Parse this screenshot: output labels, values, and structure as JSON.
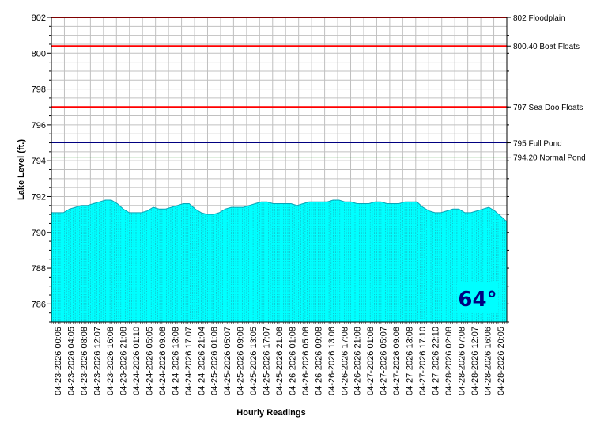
{
  "chart_data": {
    "type": "area",
    "title": "",
    "xlabel": "Hourly Readings",
    "ylabel": "Lake Level (ft.)",
    "ylim": [
      785,
      802
    ],
    "yticks": [
      786,
      788,
      790,
      792,
      794,
      796,
      798,
      800,
      802
    ],
    "grid": true,
    "x_tick_labels": [
      "04-23-2026 00:05",
      "04-23-2026 04:05",
      "04-23-2026 08:08",
      "04-23-2026 12:07",
      "04-23-2026 16:08",
      "04-23-2026 21:08",
      "04-24-2026 01:10",
      "04-24-2026 05:05",
      "04-24-2026 09:08",
      "04-24-2026 13:08",
      "04-24-2026 17:07",
      "04-24-2026 21:04",
      "04-25-2026 01:08",
      "04-25-2026 05:07",
      "04-25-2026 09:08",
      "04-25-2026 13:05",
      "04-25-2026 17:07",
      "04-25-2026 21:08",
      "04-26-2026 01:08",
      "04-26-2026 05:08",
      "04-26-2026 09:08",
      "04-26-2026 13:06",
      "04-26-2026 17:08",
      "04-26-2026 21:08",
      "04-27-2026 01:08",
      "04-27-2026 05:07",
      "04-27-2026 09:08",
      "04-27-2026 13:08",
      "04-27-2026 17:10",
      "04-27-2026 22:10",
      "04-28-2026 02:08",
      "04-28-2026 07:08",
      "04-28-2026 12:07",
      "04-28-2026 16:06",
      "04-28-2026 20:05"
    ],
    "series": [
      {
        "type": "area",
        "color": "#00ffff",
        "values": [
          791.1,
          791.1,
          791.1,
          791.3,
          791.4,
          791.5,
          791.5,
          791.6,
          791.7,
          791.8,
          791.8,
          791.6,
          791.3,
          791.1,
          791.1,
          791.1,
          791.2,
          791.4,
          791.3,
          791.3,
          791.4,
          791.5,
          791.6,
          791.6,
          791.3,
          791.1,
          791.0,
          791.0,
          791.1,
          791.3,
          791.4,
          791.4,
          791.4,
          791.5,
          791.6,
          791.7,
          791.7,
          791.6,
          791.6,
          791.6,
          791.6,
          791.5,
          791.6,
          791.7,
          791.7,
          791.7,
          791.7,
          791.8,
          791.8,
          791.7,
          791.7,
          791.6,
          791.6,
          791.6,
          791.7,
          791.7,
          791.6,
          791.6,
          791.6,
          791.7,
          791.7,
          791.7,
          791.4,
          791.2,
          791.1,
          791.1,
          791.2,
          791.3,
          791.3,
          791.1,
          791.1,
          791.2,
          791.3,
          791.4,
          791.2,
          790.9,
          790.6
        ]
      }
    ],
    "reference_lines": [
      {
        "value": 802,
        "label": "802 Floodplain",
        "color": "#ff0000"
      },
      {
        "value": 800.4,
        "label": "800.40 Boat Floats",
        "color": "#ff0000"
      },
      {
        "value": 797,
        "label": "797 Sea Doo Floats",
        "color": "#ff0000"
      },
      {
        "value": 795,
        "label": "795 Full Pond",
        "color": "#000080"
      },
      {
        "value": 794.2,
        "label": "794.20 Normal Pond",
        "color": "#008000"
      }
    ]
  },
  "temperature_badge": {
    "text": "64°",
    "background": "#00ffff",
    "text_color": "#000080"
  }
}
